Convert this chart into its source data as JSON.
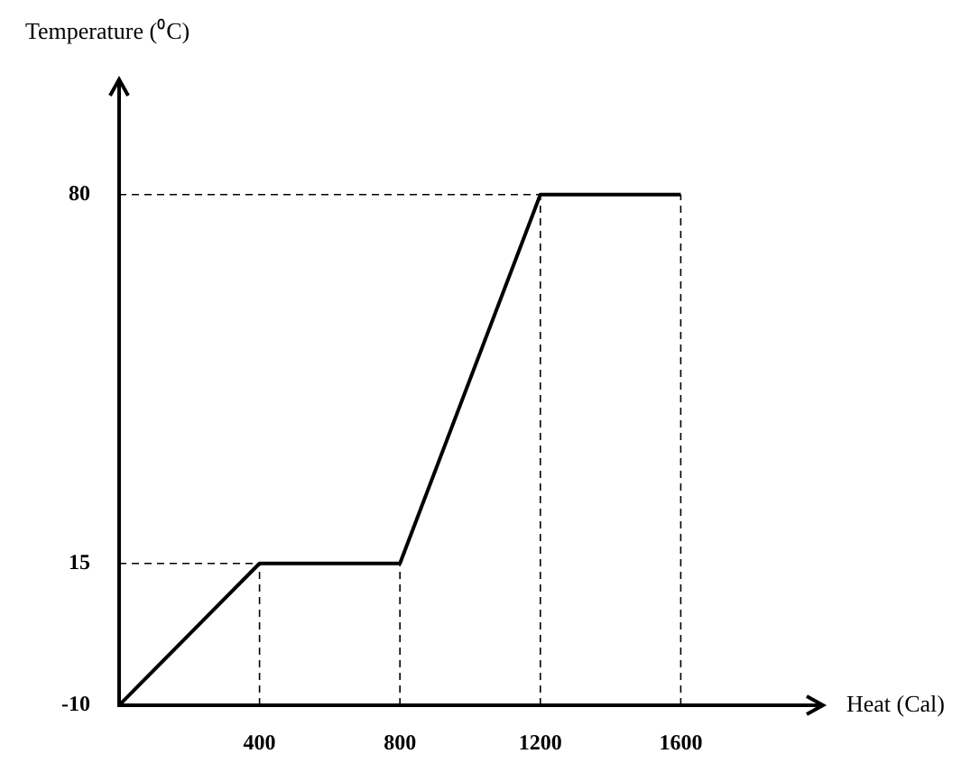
{
  "chart_data": {
    "type": "line",
    "xlabel": "Heat (Cal)",
    "ylabel": "Temperature (⁰C)",
    "x": [
      0,
      400,
      800,
      1200,
      1600
    ],
    "series": [
      {
        "color": "#000000",
        "values": [
          -10,
          15,
          15,
          80,
          80
        ]
      }
    ],
    "xlim": [
      0,
      2000
    ],
    "xticks": [
      400,
      800,
      1200,
      1600
    ],
    "ylim": [
      -10,
      100
    ],
    "yticks": [
      -10,
      15,
      80
    ],
    "ref_lines": [
      {
        "axis": "x",
        "value": 400,
        "color": "#000000",
        "line_style": "dashed"
      },
      {
        "axis": "x",
        "value": 800,
        "color": "#000000",
        "line_style": "dashed"
      },
      {
        "axis": "x",
        "value": 1200,
        "color": "#000000",
        "line_style": "dashed"
      },
      {
        "axis": "x",
        "value": 1600,
        "color": "#000000",
        "line_style": "dashed"
      },
      {
        "axis": "y",
        "value": 15,
        "color": "#000000",
        "line_style": "dashed"
      },
      {
        "axis": "y",
        "value": 80,
        "color": "#000000",
        "line_style": "dashed"
      }
    ],
    "grid": false,
    "legend": false,
    "marker": "none",
    "line_style": "solid"
  }
}
